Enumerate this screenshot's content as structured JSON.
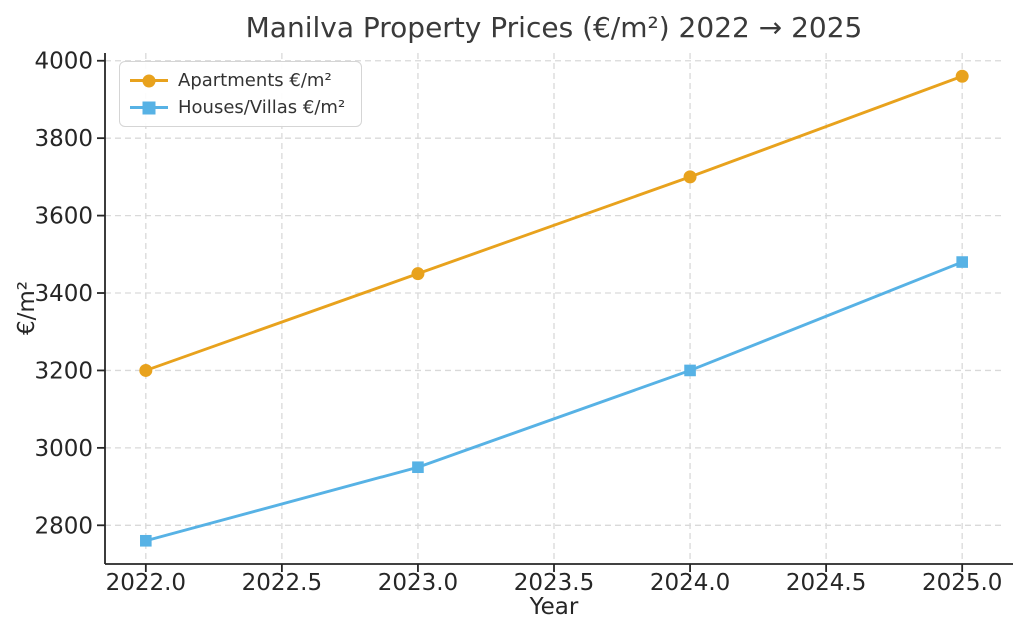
{
  "chart_data": {
    "type": "line",
    "title": "Manilva Property Prices (€/m²) 2022 → 2025",
    "xlabel": "Year",
    "ylabel": "€/m²",
    "x": [
      2022,
      2023,
      2024,
      2025
    ],
    "series": [
      {
        "name": "Apartments €/m²",
        "values": [
          3200,
          3450,
          3700,
          3960
        ],
        "color": "#E8A21D",
        "marker": "circle"
      },
      {
        "name": "Houses/Villas €/m²",
        "values": [
          2760,
          2950,
          3200,
          3480
        ],
        "color": "#57B2E5",
        "marker": "square"
      }
    ],
    "xlim": [
      2021.85,
      2025.15
    ],
    "ylim": [
      2700,
      4020
    ],
    "xticks": {
      "values": [
        2022.0,
        2022.5,
        2023.0,
        2023.5,
        2024.0,
        2024.5,
        2025.0
      ],
      "labels": [
        "2022.0",
        "2022.5",
        "2023.0",
        "2023.5",
        "2024.0",
        "2024.5",
        "2025.0"
      ]
    },
    "yticks": {
      "values": [
        2800,
        3000,
        3200,
        3400,
        3600,
        3800,
        4000
      ],
      "labels": [
        "2800",
        "3000",
        "3200",
        "3400",
        "3600",
        "3800",
        "4000"
      ]
    },
    "grid": true,
    "grid_style": "dashed",
    "legend_position": "upper-left",
    "colors": {
      "axis": "#262626",
      "grid": "#d9d9d9",
      "title": "#3a3a3a",
      "tick_label": "#262626"
    }
  }
}
